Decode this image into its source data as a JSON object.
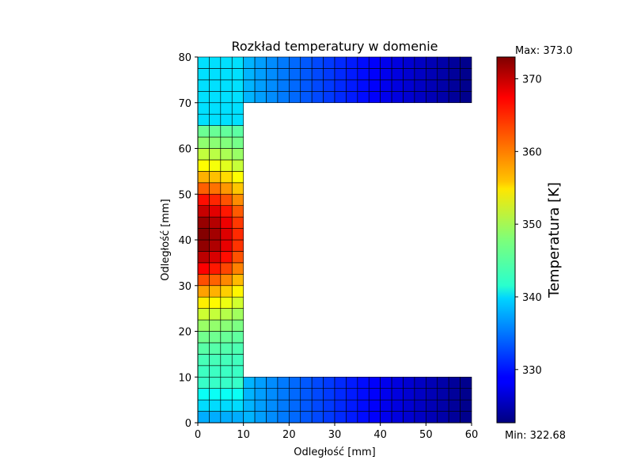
{
  "chart_data": {
    "type": "heatmap",
    "title": "Rozkład temperatury w domenie",
    "xlabel": "Odległość [mm]",
    "ylabel": "Odległość [mm]",
    "xlim": [
      0,
      60
    ],
    "ylim": [
      0,
      80
    ],
    "xticks": [
      0,
      10,
      20,
      30,
      40,
      50,
      60
    ],
    "yticks": [
      0,
      10,
      20,
      30,
      40,
      50,
      60,
      70,
      80
    ],
    "colormap": "jet",
    "grid_cell_size_mm": 2.5,
    "domain_shape": "C-shaped: vertical web x 0–10 mm, y 0–80 mm; bottom flange x 10–60 mm, y 0–10 mm; top flange x 10–60 mm, y 70–80 mm",
    "hotspot": {
      "x": 0,
      "y": 41,
      "temperature": 373.0
    },
    "colorbar": {
      "label": "Temperatura [K]",
      "min": 322.68,
      "max": 373.0,
      "ticks": [
        330,
        340,
        350,
        360,
        370
      ],
      "max_label": "Max: 373.0",
      "min_label": "Min: 322.68"
    }
  }
}
